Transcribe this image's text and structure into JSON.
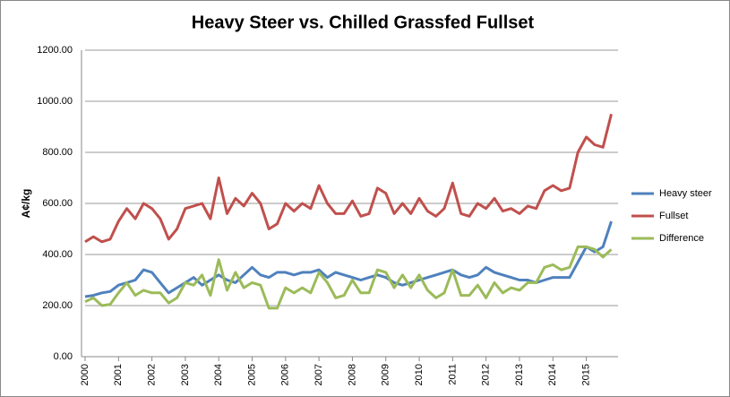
{
  "chart_data": {
    "type": "line",
    "title": "Heavy Steer vs. Chilled Grassfed Fullset",
    "y_label": "A¢/kg",
    "x": [
      2000,
      2000.25,
      2000.5,
      2000.75,
      2001,
      2001.25,
      2001.5,
      2001.75,
      2002,
      2002.25,
      2002.5,
      2002.75,
      2003,
      2003.25,
      2003.5,
      2003.75,
      2004,
      2004.25,
      2004.5,
      2004.75,
      2005,
      2005.25,
      2005.5,
      2005.75,
      2006,
      2006.25,
      2006.5,
      2006.75,
      2007,
      2007.25,
      2007.5,
      2007.75,
      2008,
      2008.25,
      2008.5,
      2008.75,
      2009,
      2009.25,
      2009.5,
      2009.75,
      2010,
      2010.25,
      2010.5,
      2010.75,
      2011,
      2011.25,
      2011.5,
      2011.75,
      2012,
      2012.25,
      2012.5,
      2012.75,
      2013,
      2013.25,
      2013.5,
      2013.75,
      2014,
      2014.25,
      2014.5,
      2014.75,
      2015,
      2015.25,
      2015.5,
      2015.75
    ],
    "series": [
      {
        "name": "Heavy steer",
        "color": "#4f81bd",
        "values": [
          235,
          240,
          250,
          255,
          280,
          290,
          300,
          340,
          330,
          290,
          250,
          270,
          290,
          310,
          280,
          300,
          320,
          300,
          290,
          320,
          350,
          320,
          310,
          330,
          330,
          320,
          330,
          330,
          340,
          310,
          330,
          320,
          310,
          300,
          310,
          320,
          310,
          290,
          280,
          290,
          300,
          310,
          320,
          330,
          340,
          320,
          310,
          320,
          350,
          330,
          320,
          310,
          300,
          300,
          290,
          300,
          310,
          310,
          310,
          370,
          430,
          410,
          430,
          530
        ]
      },
      {
        "name": "Fullset",
        "color": "#c0504d",
        "values": [
          450,
          470,
          450,
          460,
          530,
          580,
          540,
          600,
          580,
          540,
          460,
          500,
          580,
          590,
          600,
          540,
          700,
          560,
          620,
          590,
          640,
          600,
          500,
          520,
          600,
          570,
          600,
          580,
          670,
          600,
          560,
          560,
          610,
          550,
          560,
          660,
          640,
          560,
          600,
          560,
          620,
          570,
          550,
          580,
          680,
          560,
          550,
          600,
          580,
          620,
          570,
          580,
          560,
          590,
          580,
          650,
          670,
          650,
          660,
          800,
          860,
          830,
          820,
          950
        ]
      },
      {
        "name": "Difference",
        "color": "#9bbb59",
        "values": [
          215,
          230,
          200,
          205,
          250,
          290,
          240,
          260,
          250,
          250,
          210,
          230,
          290,
          280,
          320,
          240,
          380,
          260,
          330,
          270,
          290,
          280,
          190,
          190,
          270,
          250,
          270,
          250,
          330,
          290,
          230,
          240,
          300,
          250,
          250,
          340,
          330,
          270,
          320,
          270,
          320,
          260,
          230,
          250,
          340,
          240,
          240,
          280,
          230,
          290,
          250,
          270,
          260,
          290,
          290,
          350,
          360,
          340,
          350,
          430,
          430,
          420,
          390,
          420
        ]
      }
    ],
    "xlim": [
      2000,
      2015.95
    ],
    "xticks": [
      2000,
      2001,
      2002,
      2003,
      2004,
      2005,
      2006,
      2007,
      2008,
      2009,
      2010,
      2011,
      2012,
      2013,
      2014,
      2015
    ],
    "ylim": [
      0,
      1200
    ],
    "yticks": [
      {
        "value": 0,
        "label": "0.00"
      },
      {
        "value": 200,
        "label": "200.00"
      },
      {
        "value": 400,
        "label": "400.00"
      },
      {
        "value": 600,
        "label": "600.00"
      },
      {
        "value": 800,
        "label": "800.00"
      },
      {
        "value": 1000,
        "label": "1000.00"
      },
      {
        "value": 1200,
        "label": "1200.00"
      }
    ],
    "grid": true,
    "legend": "right"
  }
}
